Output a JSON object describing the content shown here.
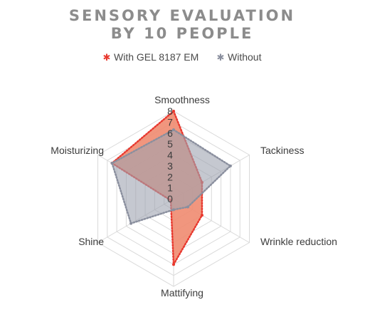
{
  "chart_data": {
    "type": "radar",
    "title_lines": [
      "SENSORY EVALUATION",
      "BY 10 PEOPLE"
    ],
    "axes": [
      "Smoothness",
      "Tackiness",
      "Wrinkle reduction",
      "Mattifying",
      "Shine",
      "Moisturizing"
    ],
    "r_ticks": [
      "0",
      "1",
      "2",
      "3",
      "4",
      "5",
      "6",
      "7",
      "8"
    ],
    "r_range": [
      0,
      8
    ],
    "grid": true,
    "legend_position": "top",
    "series": [
      {
        "name": "With GEL 8187 EM",
        "values": [
          8,
          3,
          3,
          6,
          0.3,
          6.5
        ],
        "color": "#e8392f",
        "fill": "#f08b70",
        "marker": "star"
      },
      {
        "name": "Without",
        "values": [
          6.3,
          6,
          1.5,
          1,
          4.5,
          6.5
        ],
        "color": "#8a8f9e",
        "fill": "#9fa3b1",
        "marker": "star"
      }
    ]
  }
}
